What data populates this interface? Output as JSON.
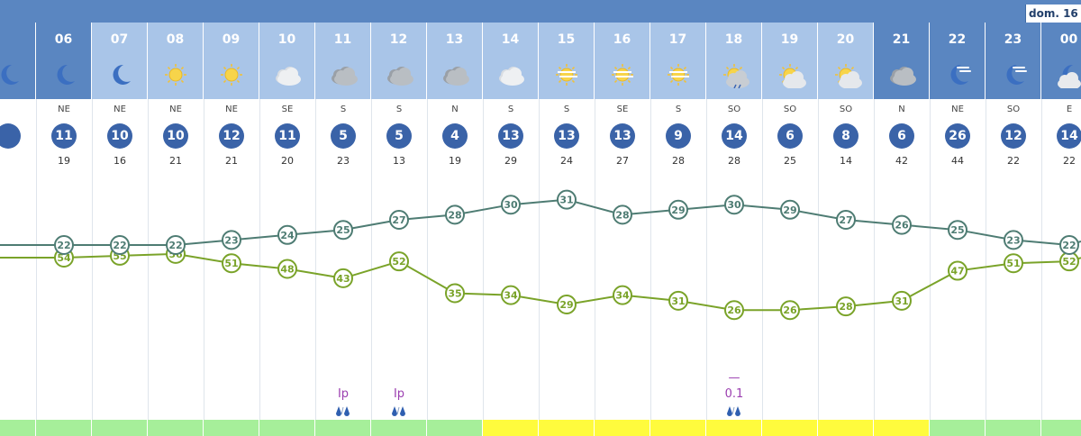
{
  "header": {
    "day_label": "dom. 16"
  },
  "hours": [
    {
      "label": "",
      "icon": "moon-icon",
      "night": true
    },
    {
      "label": "06",
      "icon": "moon-icon",
      "night": true
    },
    {
      "label": "07",
      "icon": "moon-icon",
      "night": false
    },
    {
      "label": "08",
      "icon": "sun-icon",
      "night": false
    },
    {
      "label": "09",
      "icon": "sun-icon",
      "night": false
    },
    {
      "label": "10",
      "icon": "cloud-icon",
      "night": false
    },
    {
      "label": "11",
      "icon": "dark-cloud-icon",
      "night": false
    },
    {
      "label": "12",
      "icon": "dark-cloud-icon",
      "night": false
    },
    {
      "label": "13",
      "icon": "dark-cloud-icon",
      "night": false
    },
    {
      "label": "14",
      "icon": "cloud-icon",
      "night": false
    },
    {
      "label": "15",
      "icon": "sun-haze-icon",
      "night": false
    },
    {
      "label": "16",
      "icon": "sun-haze-icon",
      "night": false
    },
    {
      "label": "17",
      "icon": "sun-haze-icon",
      "night": false
    },
    {
      "label": "18",
      "icon": "sun-rain-icon",
      "night": false
    },
    {
      "label": "19",
      "icon": "sun-cloud-icon",
      "night": false
    },
    {
      "label": "20",
      "icon": "sun-cloud-icon",
      "night": false
    },
    {
      "label": "21",
      "icon": "dark-cloud-icon",
      "night": true
    },
    {
      "label": "22",
      "icon": "moon-haze-icon",
      "night": true
    },
    {
      "label": "23",
      "icon": "moon-haze-icon",
      "night": true
    },
    {
      "label": "00",
      "icon": "moon-cloud-icon",
      "night": true
    }
  ],
  "wind": [
    {
      "dir": "",
      "speed": "",
      "gust": ""
    },
    {
      "dir": "NE",
      "speed": "11",
      "gust": "19"
    },
    {
      "dir": "NE",
      "speed": "10",
      "gust": "16"
    },
    {
      "dir": "NE",
      "speed": "10",
      "gust": "21"
    },
    {
      "dir": "NE",
      "speed": "12",
      "gust": "21"
    },
    {
      "dir": "SE",
      "speed": "11",
      "gust": "20"
    },
    {
      "dir": "S",
      "speed": "5",
      "gust": "23"
    },
    {
      "dir": "S",
      "speed": "5",
      "gust": "13"
    },
    {
      "dir": "N",
      "speed": "4",
      "gust": "19"
    },
    {
      "dir": "S",
      "speed": "13",
      "gust": "29"
    },
    {
      "dir": "S",
      "speed": "13",
      "gust": "24"
    },
    {
      "dir": "SE",
      "speed": "13",
      "gust": "27"
    },
    {
      "dir": "S",
      "speed": "9",
      "gust": "28"
    },
    {
      "dir": "SO",
      "speed": "14",
      "gust": "28"
    },
    {
      "dir": "SO",
      "speed": "6",
      "gust": "25"
    },
    {
      "dir": "SO",
      "speed": "8",
      "gust": "14"
    },
    {
      "dir": "N",
      "speed": "6",
      "gust": "42"
    },
    {
      "dir": "NE",
      "speed": "26",
      "gust": "44"
    },
    {
      "dir": "SO",
      "speed": "12",
      "gust": "22"
    },
    {
      "dir": "E",
      "speed": "14",
      "gust": "22"
    }
  ],
  "temperature": [
    null,
    22,
    22,
    22,
    23,
    24,
    25,
    27,
    28,
    30,
    31,
    28,
    29,
    30,
    29,
    27,
    26,
    25,
    23,
    22
  ],
  "humidity": [
    null,
    54,
    55,
    56,
    51,
    48,
    43,
    52,
    35,
    34,
    29,
    34,
    31,
    26,
    26,
    28,
    31,
    47,
    51,
    52
  ],
  "precipitation": [
    {
      "index": 6,
      "value": "Ip"
    },
    {
      "index": 7,
      "value": "Ip"
    },
    {
      "index": 13,
      "value": "0.1",
      "mark": "—"
    }
  ],
  "strip_colors": [
    "#a6ef9a",
    "#a6ef9a",
    "#a6ef9a",
    "#a6ef9a",
    "#a6ef9a",
    "#a6ef9a",
    "#a6ef9a",
    "#a6ef9a",
    "#a6ef9a",
    "#fffb3d",
    "#fffb3d",
    "#fffb3d",
    "#fffb3d",
    "#fffb3d",
    "#fffb3d",
    "#fffb3d",
    "#fffb3d",
    "#a6ef9a",
    "#a6ef9a",
    "#a6ef9a"
  ],
  "colors": {
    "top_bar": "#5a86c1",
    "night_header": "#5a86c1",
    "day_header": "#a9c5e8",
    "temp_line": "#4e7c73",
    "humidity_line": "#7aa329",
    "wind_circle": "#3a63a8",
    "precip_text": "#9b3fb0"
  }
}
